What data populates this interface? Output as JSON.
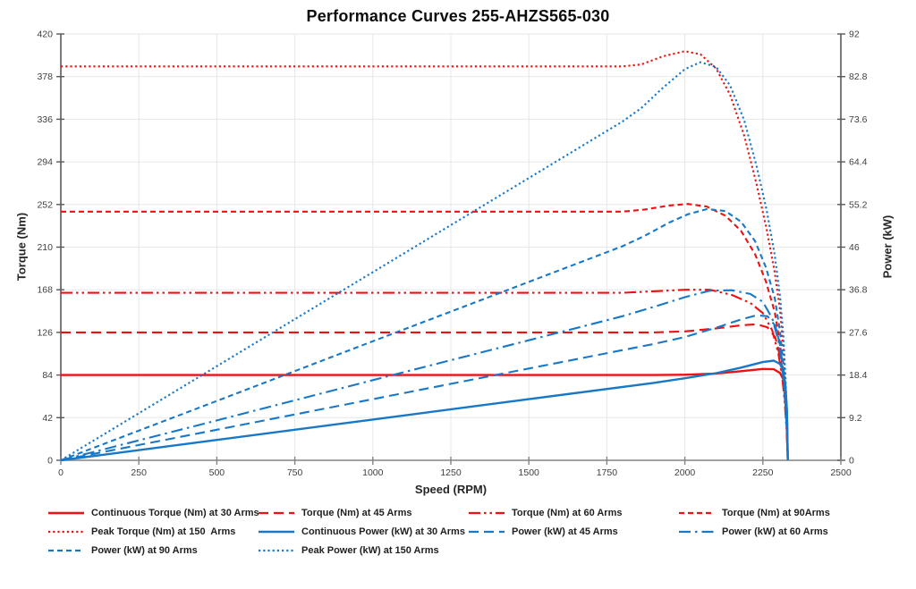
{
  "chart_data": {
    "type": "line",
    "title": "Performance Curves 255-AHZS565-030",
    "xlabel": "Speed (RPM)",
    "ylabel_left": "Torque (Nm)",
    "ylabel_right": "Power (kW)",
    "xlim": [
      0,
      2500
    ],
    "ylim_left": [
      0,
      420
    ],
    "ylim_right": [
      0,
      92
    ],
    "x_ticks": [
      0,
      250,
      500,
      750,
      1000,
      1250,
      1500,
      1750,
      2000,
      2250,
      2500
    ],
    "y_ticks_left": [
      "0",
      "42",
      "84",
      "126",
      "168",
      "210",
      "252",
      "294",
      "336",
      "378",
      "420"
    ],
    "y_ticks_right": [
      "0",
      "9.2",
      "18.4",
      "27.6",
      "36.8",
      "46",
      "55.2",
      "64.4",
      "73.6",
      "82.8",
      "92"
    ],
    "grid": true,
    "legend_position": "bottom",
    "legend_columns": 4,
    "colors": {
      "torque_red": "#ee1111",
      "power_blue": "#1878c8",
      "gridline": "#e7e7e7",
      "axis": "#595959"
    },
    "series": [
      {
        "name": "Continuous Torque (Nm) at 30 Arms",
        "axis": "left",
        "color": "#ee1111",
        "dash": "solid",
        "points": [
          [
            0,
            84
          ],
          [
            250,
            84
          ],
          [
            500,
            84
          ],
          [
            750,
            84
          ],
          [
            1000,
            84
          ],
          [
            1250,
            84
          ],
          [
            1500,
            84
          ],
          [
            1750,
            84
          ],
          [
            1900,
            84
          ],
          [
            2000,
            84.3
          ],
          [
            2100,
            85.5
          ],
          [
            2180,
            87.8
          ],
          [
            2250,
            90
          ],
          [
            2285,
            89.7
          ],
          [
            2305,
            86
          ],
          [
            2315,
            80
          ],
          [
            2322,
            68
          ],
          [
            2327,
            45
          ],
          [
            2330,
            0
          ]
        ]
      },
      {
        "name": "Torque (Nm) at 45 Arms",
        "axis": "left",
        "color": "#ee1111",
        "dash": "longdash",
        "points": [
          [
            0,
            126
          ],
          [
            500,
            126
          ],
          [
            1000,
            126
          ],
          [
            1500,
            126
          ],
          [
            1900,
            126
          ],
          [
            2000,
            127
          ],
          [
            2100,
            130
          ],
          [
            2180,
            133
          ],
          [
            2230,
            134
          ],
          [
            2265,
            131
          ],
          [
            2290,
            121
          ],
          [
            2305,
            102
          ],
          [
            2315,
            80
          ],
          [
            2322,
            55
          ],
          [
            2327,
            28
          ],
          [
            2330,
            0
          ]
        ]
      },
      {
        "name": "Torque (Nm) at 60 Arms",
        "axis": "left",
        "color": "#ee1111",
        "dash": "dashdotdot",
        "points": [
          [
            0,
            165
          ],
          [
            500,
            165
          ],
          [
            1000,
            165
          ],
          [
            1500,
            165
          ],
          [
            1800,
            165
          ],
          [
            1900,
            166.5
          ],
          [
            2000,
            168
          ],
          [
            2080,
            168
          ],
          [
            2150,
            163
          ],
          [
            2210,
            155
          ],
          [
            2250,
            145
          ],
          [
            2280,
            128
          ],
          [
            2300,
            105
          ],
          [
            2312,
            82
          ],
          [
            2320,
            58
          ],
          [
            2326,
            30
          ],
          [
            2330,
            0
          ]
        ]
      },
      {
        "name": "Torque (Nm) at 90Arms",
        "axis": "left",
        "color": "#ee1111",
        "dash": "shortdash",
        "points": [
          [
            0,
            245
          ],
          [
            500,
            245
          ],
          [
            1000,
            245
          ],
          [
            1500,
            245
          ],
          [
            1800,
            245
          ],
          [
            1870,
            247
          ],
          [
            1950,
            251
          ],
          [
            2010,
            252.5
          ],
          [
            2070,
            250
          ],
          [
            2130,
            241
          ],
          [
            2180,
            226
          ],
          [
            2225,
            203
          ],
          [
            2260,
            176
          ],
          [
            2288,
            146
          ],
          [
            2305,
            115
          ],
          [
            2316,
            85
          ],
          [
            2323,
            52
          ],
          [
            2328,
            25
          ],
          [
            2330,
            0
          ]
        ]
      },
      {
        "name": "Peak Torque (Nm) at 150  Arms",
        "axis": "left",
        "color": "#ee1111",
        "dash": "dot",
        "points": [
          [
            0,
            388
          ],
          [
            500,
            388
          ],
          [
            1000,
            388
          ],
          [
            1500,
            388
          ],
          [
            1800,
            388
          ],
          [
            1860,
            390
          ],
          [
            1930,
            398
          ],
          [
            2000,
            403
          ],
          [
            2050,
            400
          ],
          [
            2100,
            386
          ],
          [
            2145,
            360
          ],
          [
            2190,
            320
          ],
          [
            2230,
            272
          ],
          [
            2262,
            228
          ],
          [
            2288,
            185
          ],
          [
            2305,
            148
          ],
          [
            2316,
            110
          ],
          [
            2323,
            70
          ],
          [
            2328,
            35
          ],
          [
            2330,
            0
          ]
        ]
      },
      {
        "name": "Continuous Power (kW) at 30 Arms",
        "axis": "right",
        "color": "#1878c8",
        "dash": "solid",
        "points": [
          [
            0,
            0
          ],
          [
            500,
            4.4
          ],
          [
            1000,
            8.8
          ],
          [
            1500,
            13.2
          ],
          [
            1900,
            16.7
          ],
          [
            2000,
            17.7
          ],
          [
            2100,
            18.8
          ],
          [
            2180,
            20.0
          ],
          [
            2250,
            21.2
          ],
          [
            2285,
            21.5
          ],
          [
            2305,
            20.8
          ],
          [
            2315,
            19.4
          ],
          [
            2322,
            16.5
          ],
          [
            2327,
            11
          ],
          [
            2330,
            0
          ]
        ]
      },
      {
        "name": "Power (kW) at 45 Arms",
        "axis": "right",
        "color": "#1878c8",
        "dash": "longdash",
        "points": [
          [
            0,
            0
          ],
          [
            500,
            6.6
          ],
          [
            1000,
            13.2
          ],
          [
            1500,
            19.8
          ],
          [
            1900,
            25.1
          ],
          [
            2000,
            26.6
          ],
          [
            2100,
            28.6
          ],
          [
            2180,
            30.4
          ],
          [
            2230,
            31.3
          ],
          [
            2265,
            31.1
          ],
          [
            2290,
            29.0
          ],
          [
            2305,
            24.9
          ],
          [
            2315,
            19.6
          ],
          [
            2322,
            13.4
          ],
          [
            2327,
            6.9
          ],
          [
            2330,
            0
          ]
        ]
      },
      {
        "name": "Power (kW) at 60 Arms",
        "axis": "right",
        "color": "#1878c8",
        "dash": "dashdot",
        "points": [
          [
            0,
            0
          ],
          [
            500,
            8.6
          ],
          [
            1000,
            17.3
          ],
          [
            1500,
            25.9
          ],
          [
            1800,
            31.1
          ],
          [
            1900,
            33.1
          ],
          [
            2000,
            35.2
          ],
          [
            2080,
            36.6
          ],
          [
            2150,
            36.7
          ],
          [
            2210,
            35.9
          ],
          [
            2250,
            34.2
          ],
          [
            2280,
            30.6
          ],
          [
            2300,
            25.8
          ],
          [
            2312,
            20.1
          ],
          [
            2320,
            14.2
          ],
          [
            2326,
            7.3
          ],
          [
            2330,
            0
          ]
        ]
      },
      {
        "name": "Power (kW) at 90 Arms",
        "axis": "right",
        "color": "#1878c8",
        "dash": "shortdash",
        "points": [
          [
            0,
            0
          ],
          [
            500,
            12.8
          ],
          [
            1000,
            25.7
          ],
          [
            1500,
            38.5
          ],
          [
            1800,
            46.2
          ],
          [
            1870,
            48.4
          ],
          [
            1950,
            51.3
          ],
          [
            2010,
            53.1
          ],
          [
            2070,
            54.2
          ],
          [
            2130,
            53.8
          ],
          [
            2180,
            51.5
          ],
          [
            2225,
            47.3
          ],
          [
            2260,
            41.6
          ],
          [
            2288,
            35.0
          ],
          [
            2305,
            27.8
          ],
          [
            2316,
            20.6
          ],
          [
            2323,
            12.7
          ],
          [
            2328,
            6.1
          ],
          [
            2330,
            0
          ]
        ]
      },
      {
        "name": "Peak Power (kW) at 150 Arms",
        "axis": "right",
        "color": "#1878c8",
        "dash": "dot",
        "points": [
          [
            0,
            0
          ],
          [
            500,
            20.3
          ],
          [
            1000,
            40.6
          ],
          [
            1500,
            60.9
          ],
          [
            1800,
            73.1
          ],
          [
            1860,
            76.0
          ],
          [
            1930,
            80.4
          ],
          [
            2000,
            84.4
          ],
          [
            2050,
            85.9
          ],
          [
            2100,
            84.9
          ],
          [
            2145,
            80.9
          ],
          [
            2190,
            73.4
          ],
          [
            2230,
            63.5
          ],
          [
            2262,
            54.0
          ],
          [
            2288,
            44.3
          ],
          [
            2305,
            35.4
          ],
          [
            2316,
            26.7
          ],
          [
            2323,
            17.0
          ],
          [
            2328,
            8.5
          ],
          [
            2330,
            0
          ]
        ]
      }
    ]
  }
}
